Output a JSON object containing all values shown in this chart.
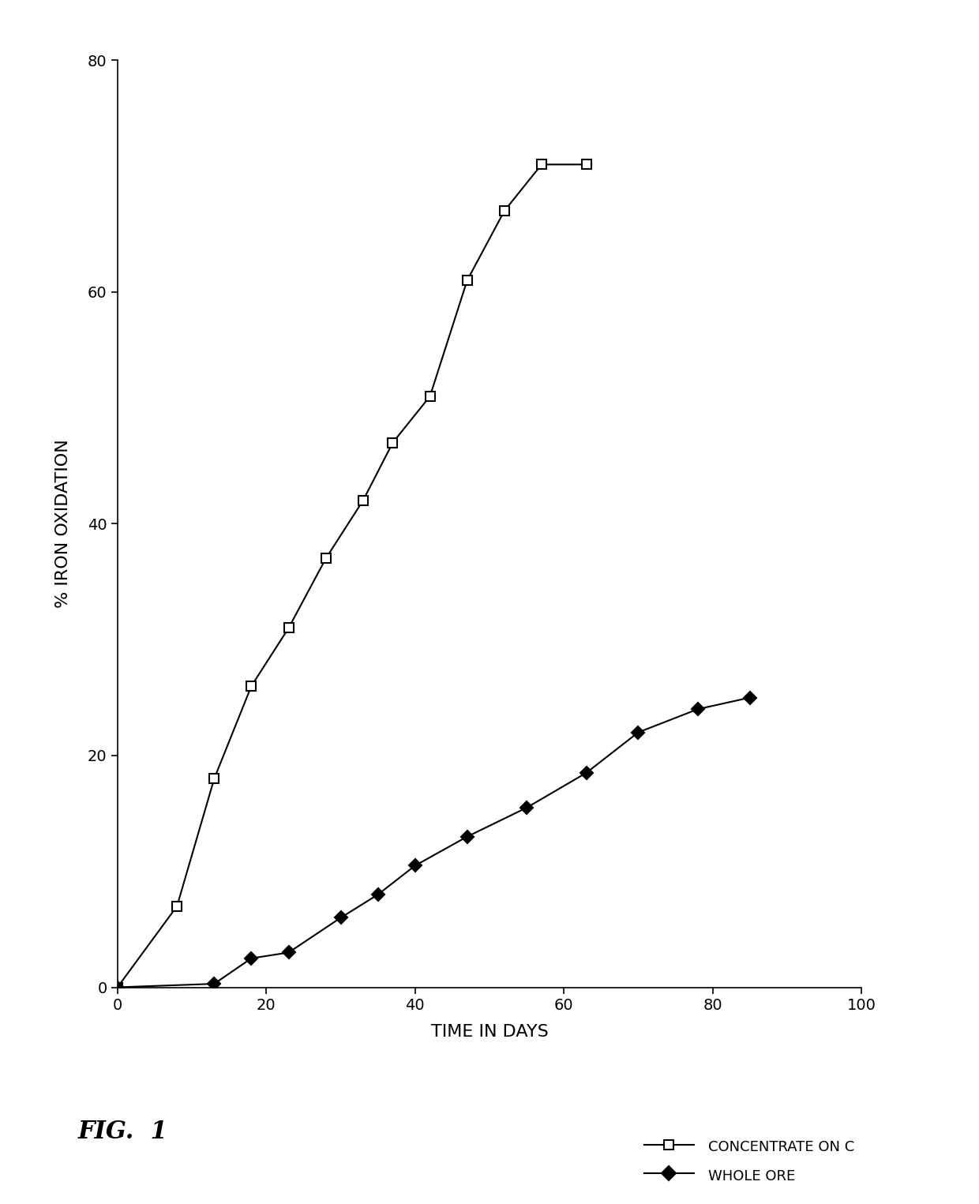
{
  "title": "",
  "xlabel": "TIME IN DAYS",
  "ylabel": "% IRON OXIDATION",
  "xlim": [
    0,
    100
  ],
  "ylim": [
    0,
    80
  ],
  "xticks": [
    0,
    20,
    40,
    60,
    80,
    100
  ],
  "yticks": [
    0,
    20,
    40,
    60,
    80
  ],
  "concentrate_x": [
    0,
    8,
    13,
    18,
    23,
    28,
    33,
    37,
    42,
    47,
    52,
    57,
    63
  ],
  "concentrate_y": [
    0,
    7,
    18,
    26,
    31,
    37,
    42,
    47,
    51,
    61,
    67,
    71,
    71
  ],
  "whole_ore_x": [
    0,
    13,
    18,
    23,
    30,
    35,
    40,
    47,
    55,
    63,
    70,
    78,
    85
  ],
  "whole_ore_y": [
    0,
    0.3,
    2.5,
    3,
    6,
    8,
    10.5,
    13,
    15.5,
    18.5,
    22,
    24,
    25
  ],
  "concentrate_color": "#000000",
  "whole_ore_color": "#000000",
  "background_color": "#ffffff",
  "fig_label": "FIG.  1",
  "legend_concentrate": "CONCENTRATE ON C",
  "legend_whole_ore": "WHOLE ORE"
}
